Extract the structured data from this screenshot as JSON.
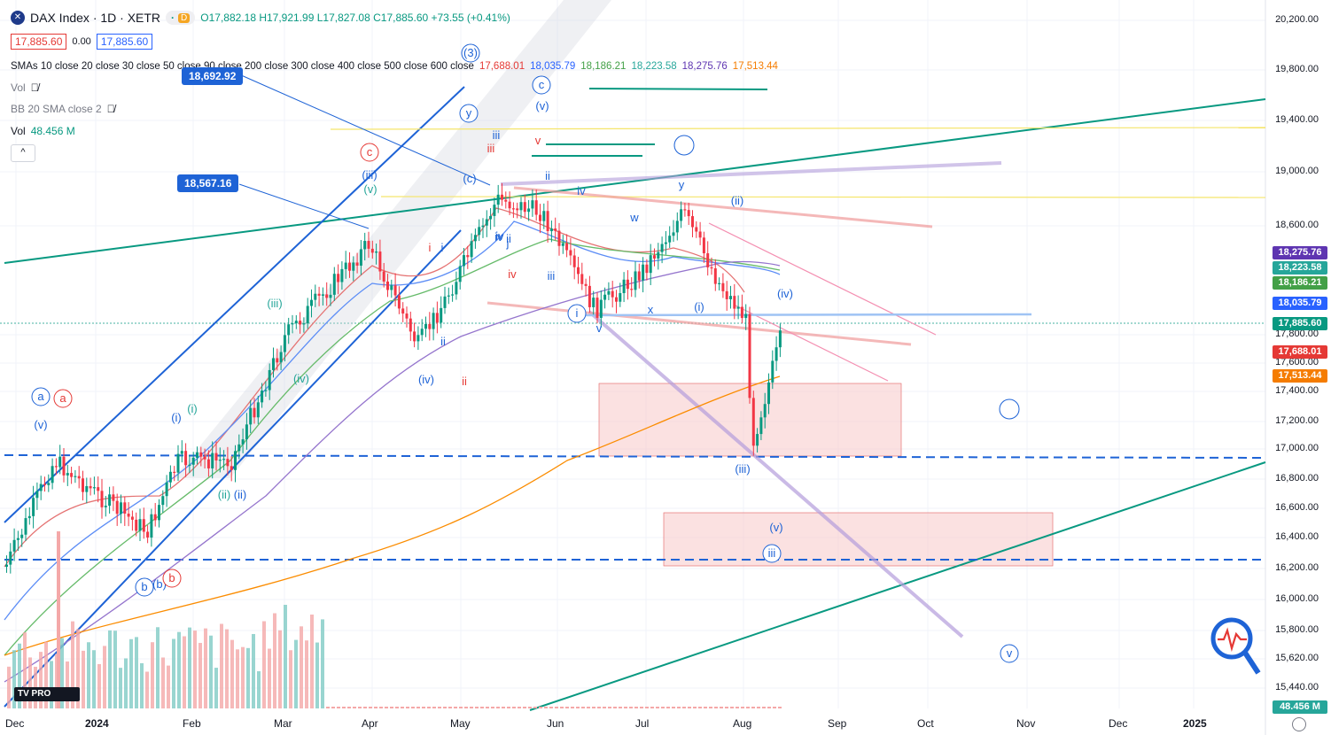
{
  "header": {
    "symbol_icon": "dax-logo-icon",
    "title": "DAX Index · 1D · XETR",
    "pill_dot": "·",
    "pill_d": "D",
    "ohlc": "O17,882.18 H17,921.99 L17,827.08 C17,885.60 +73.55 (+0.41%)",
    "bid": "17,885.60",
    "spread": "0.00",
    "ask": "17,885.60"
  },
  "indicators": {
    "sma_label": "SMAs 10 close 20 close 30 close 50 close 90 close 200 close 300 close 400 close 500 close 600 close",
    "sma_values": [
      {
        "text": "17,688.01",
        "color": "#e53935"
      },
      {
        "text": "18,035.79",
        "color": "#2962ff"
      },
      {
        "text": "18,186.21",
        "color": "#43a047"
      },
      {
        "text": "18,223.58",
        "color": "#26a69a"
      },
      {
        "text": "18,275.76",
        "color": "#5e35b1"
      },
      {
        "text": "17,513.44",
        "color": "#f57c00"
      }
    ],
    "vol_label": "Vol",
    "bb_label": "BB 20 SMA close 2",
    "vol2_label": "Vol",
    "vol2_value": "48.456 M",
    "collapse": "^"
  },
  "price_axis": {
    "ticks": [
      "20,200.00",
      "19,800.00",
      "19,400.00",
      "19,000.00",
      "18,600.00",
      "17,800.00",
      "17,600.00",
      "17,400.00",
      "17,200.00",
      "17,000.00",
      "16,800.00",
      "16,600.00",
      "16,400.00",
      "16,200.00",
      "16,000.00",
      "15,800.00",
      "15,620.00",
      "15,440.00"
    ],
    "tags": [
      {
        "text": "18,275.76",
        "color": "#5e35b1"
      },
      {
        "text": "18,223.58",
        "color": "#26a69a"
      },
      {
        "text": "18,186.21",
        "color": "#43a047"
      },
      {
        "text": "18,035.79",
        "color": "#2962ff"
      },
      {
        "text": "17,885.60",
        "color": "#089981"
      },
      {
        "text": "17,688.01",
        "color": "#e53935"
      },
      {
        "text": "17,513.44",
        "color": "#f57c00"
      },
      {
        "text": "48.456 M",
        "color": "#26a69a"
      }
    ]
  },
  "time_axis": [
    "Dec",
    "2024",
    "Feb",
    "Mar",
    "Apr",
    "May",
    "Jun",
    "Jul",
    "Aug",
    "Sep",
    "Oct",
    "Nov",
    "Dec",
    "2025"
  ],
  "callouts": [
    "18,692.92",
    "18,567.16"
  ],
  "wave_labels": [
    {
      "text": "(3)",
      "color": "#1e63d6"
    },
    {
      "text": "c",
      "color": "#1e63d6"
    },
    {
      "text": "(v)",
      "color": "#1e63d6"
    },
    {
      "text": "y",
      "color": "#1e63d6"
    },
    {
      "text": "iii",
      "color": "#1e63d6"
    },
    {
      "text": "c",
      "color": "#e53935"
    },
    {
      "text": "(iii)",
      "color": "#1e63d6"
    },
    {
      "text": "(v)",
      "color": "#26a69a"
    },
    {
      "text": "(c)",
      "color": "#1e63d6"
    },
    {
      "text": "v",
      "color": "#e53935"
    },
    {
      "text": "iii",
      "color": "#e53935"
    },
    {
      "text": "ii",
      "color": "#1e63d6"
    },
    {
      "text": "iv",
      "color": "#1e63d6"
    },
    {
      "text": "ii",
      "color": "#1e63d6"
    },
    {
      "text": "y",
      "color": "#1e63d6"
    },
    {
      "text": "(ii)",
      "color": "#1e63d6"
    },
    {
      "text": "w",
      "color": "#1e63d6"
    },
    {
      "text": "i",
      "color": "#e53935"
    },
    {
      "text": "i",
      "color": "#1e63d6"
    },
    {
      "text": "iv",
      "color": "#1e63d6"
    },
    {
      "text": "iv",
      "color": "#e53935"
    },
    {
      "text": "iii",
      "color": "#1e63d6"
    },
    {
      "text": "(iii)",
      "color": "#26a69a"
    },
    {
      "text": "(iv)",
      "color": "#1e63d6"
    },
    {
      "text": "i",
      "color": "#1e63d6"
    },
    {
      "text": "x",
      "color": "#1e63d6"
    },
    {
      "text": "(i)",
      "color": "#1e63d6"
    },
    {
      "text": "v",
      "color": "#1e63d6"
    },
    {
      "text": "(iv)",
      "color": "#26a69a"
    },
    {
      "text": "ii",
      "color": "#1e63d6"
    },
    {
      "text": "(iv)",
      "color": "#1e63d6"
    },
    {
      "text": "ii",
      "color": "#e53935"
    },
    {
      "text": "a",
      "color": "#1e63d6"
    },
    {
      "text": "a",
      "color": "#e53935"
    },
    {
      "text": "(v)",
      "color": "#1e63d6"
    },
    {
      "text": "(i)",
      "color": "#1e63d6"
    },
    {
      "text": "(i)",
      "color": "#26a69a"
    },
    {
      "text": "iv",
      "color": "#1e63d6"
    },
    {
      "text": "(iii)",
      "color": "#1e63d6"
    },
    {
      "text": "(ii)",
      "color": "#26a69a"
    },
    {
      "text": "(ii)",
      "color": "#1e63d6"
    },
    {
      "text": "(v)",
      "color": "#1e63d6"
    },
    {
      "text": "iii",
      "color": "#1e63d6"
    },
    {
      "text": "b",
      "color": "#1e63d6"
    },
    {
      "text": "(b)",
      "color": "#1e63d6"
    },
    {
      "text": "b",
      "color": "#e53935"
    },
    {
      "text": "v",
      "color": "#1e63d6"
    },
    {
      "text": "j",
      "color": "#1e63d6"
    }
  ]
}
